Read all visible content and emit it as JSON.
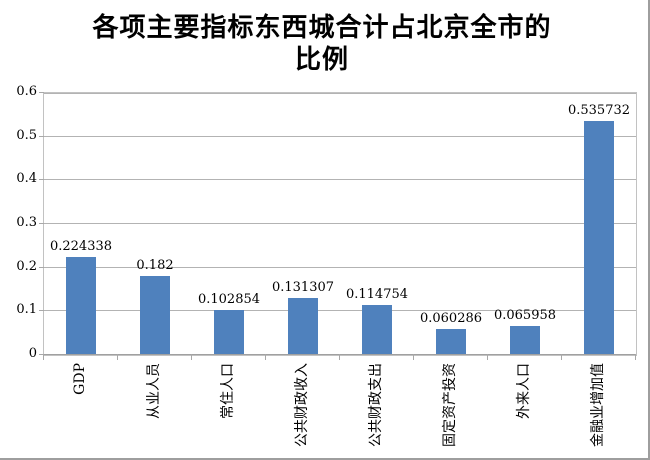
{
  "chart_data": {
    "type": "bar",
    "title_lines": [
      "各项主要指标东西城合计占北京全市的",
      "比例"
    ],
    "categories": [
      "GDP",
      "从业人员",
      "常住人口",
      "公共财政收入",
      "公共财政支出",
      "固定资产投资",
      "外来人口",
      "金融业增加值"
    ],
    "values": [
      0.224338,
      0.182,
      0.102854,
      0.131307,
      0.114754,
      0.060286,
      0.065958,
      0.535732
    ],
    "data_labels": [
      "0.224338",
      "0.182",
      "0.102854",
      "0.131307",
      "0.114754",
      "0.060286",
      "0.065958",
      "0.535732"
    ],
    "y_ticks": [
      "0",
      "0.1",
      "0.2",
      "0.3",
      "0.4",
      "0.5",
      "0.6"
    ],
    "ylim": [
      0,
      0.6
    ],
    "xlabel": "",
    "ylabel": "",
    "legend": "none",
    "grid": true,
    "bar_color": "#4f81bd",
    "gridline_color": "#b3b3b3",
    "axis_color": "#a0a0a0",
    "background_color": "#ffffff"
  }
}
